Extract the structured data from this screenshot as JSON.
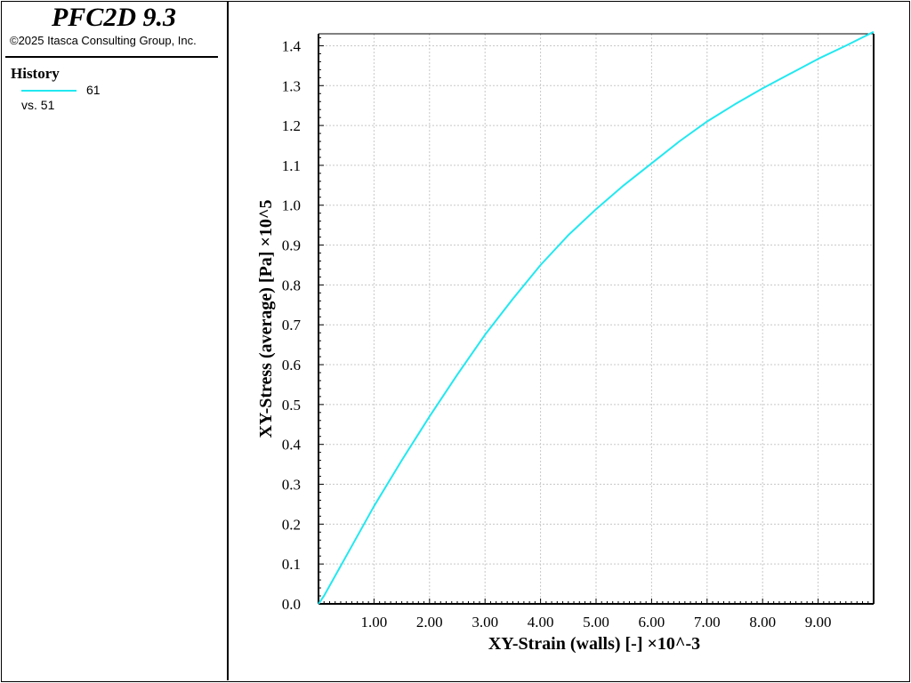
{
  "app": {
    "title": "PFC2D 9.3",
    "copyright": "©2025 Itasca Consulting Group, Inc."
  },
  "legend": {
    "heading": "History",
    "series_id": "61",
    "vs_label": "vs. 51"
  },
  "colors": {
    "series": "#22e8f0",
    "grid": "#c8c8c8",
    "axis": "#000000"
  },
  "chart_data": {
    "type": "line",
    "title": "",
    "xlabel": "XY-Strain (walls) [-] ×10^-3",
    "ylabel": "XY-Stress (average) [Pa] ×10^5",
    "xlim": [
      0,
      10.0
    ],
    "ylim": [
      0,
      1.43
    ],
    "grid": true,
    "legend_position": "left-panel",
    "x_ticks": [
      1.0,
      2.0,
      3.0,
      4.0,
      5.0,
      6.0,
      7.0,
      8.0,
      9.0
    ],
    "x_tick_labels": [
      "1.00",
      "2.00",
      "3.00",
      "4.00",
      "5.00",
      "6.00",
      "7.00",
      "8.00",
      "9.00"
    ],
    "y_ticks": [
      0.0,
      0.1,
      0.2,
      0.3,
      0.4,
      0.5,
      0.6,
      0.7,
      0.8,
      0.9,
      1.0,
      1.1,
      1.2,
      1.3,
      1.4
    ],
    "y_tick_labels": [
      "0.0",
      "0.1",
      "0.2",
      "0.3",
      "0.4",
      "0.5",
      "0.6",
      "0.7",
      "0.8",
      "0.9",
      "1.0",
      "1.1",
      "1.2",
      "1.3",
      "1.4"
    ],
    "series": [
      {
        "name": "61",
        "x": [
          0.0,
          0.1,
          0.5,
          1.0,
          1.5,
          2.0,
          2.5,
          3.0,
          3.5,
          4.0,
          4.5,
          5.0,
          5.5,
          6.0,
          6.5,
          7.0,
          7.5,
          8.0,
          8.5,
          9.0,
          9.5,
          10.0
        ],
        "y": [
          0.0,
          0.02,
          0.12,
          0.245,
          0.36,
          0.47,
          0.575,
          0.675,
          0.765,
          0.85,
          0.925,
          0.99,
          1.05,
          1.105,
          1.16,
          1.21,
          1.253,
          1.293,
          1.33,
          1.367,
          1.4,
          1.435
        ]
      }
    ]
  }
}
